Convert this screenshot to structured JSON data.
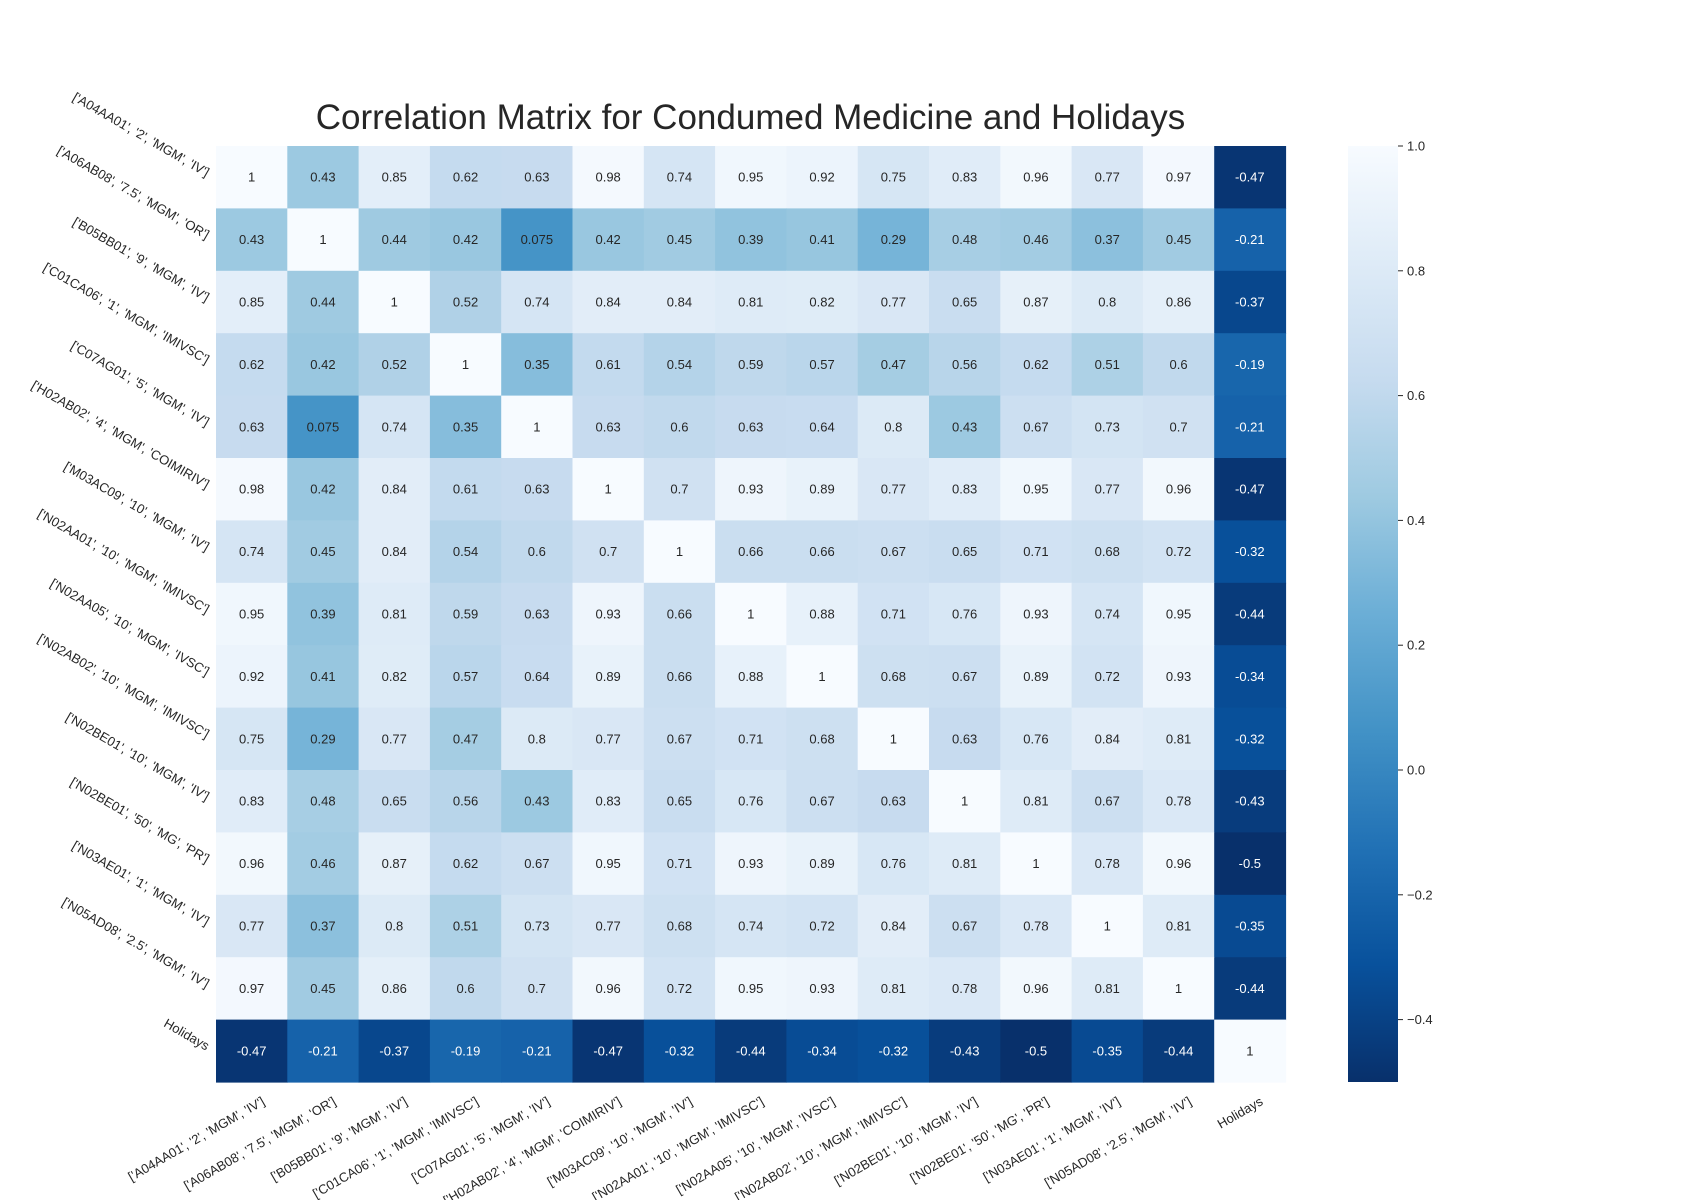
{
  "chart_data": {
    "type": "heatmap",
    "title": "Correlation Matrix for Condumed Medicine and Holidays",
    "colormap": "Blues_r",
    "vmin": -0.5,
    "vmax": 1.0,
    "labels": [
      "['A04AA01', '2', 'MGM', 'IV']",
      "['A06AB08', '7.5', 'MGM', 'OR']",
      "['B05BB01', '9', 'MGM', 'IV']",
      "['C01CA06', '1', 'MGM', 'IMIVSC']",
      "['C07AG01', '5', 'MGM', 'IV']",
      "['H02AB02', '4', 'MGM', 'COIMIRIV']",
      "['M03AC09', '10', 'MGM', 'IV']",
      "['N02AA01', '10', 'MGM', 'IMIVSC']",
      "['N02AA05', '10', 'MGM', 'IVSC']",
      "['N02AB02', '10', 'MGM', 'IMIVSC']",
      "['N02BE01', '10', 'MGM', 'IV']",
      "['N02BE01', '50', 'MG', 'PR']",
      "['N03AE01', '1', 'MGM', 'IV']",
      "['N05AD08', '2.5', 'MGM', 'IV']",
      "Holidays"
    ],
    "values": [
      [
        "1",
        "0.43",
        "0.85",
        "0.62",
        "0.63",
        "0.98",
        "0.74",
        "0.95",
        "0.92",
        "0.75",
        "0.83",
        "0.96",
        "0.77",
        "0.97",
        "-0.47"
      ],
      [
        "0.43",
        "1",
        "0.44",
        "0.42",
        "0.075",
        "0.42",
        "0.45",
        "0.39",
        "0.41",
        "0.29",
        "0.48",
        "0.46",
        "0.37",
        "0.45",
        "-0.21"
      ],
      [
        "0.85",
        "0.44",
        "1",
        "0.52",
        "0.74",
        "0.84",
        "0.84",
        "0.81",
        "0.82",
        "0.77",
        "0.65",
        "0.87",
        "0.8",
        "0.86",
        "-0.37"
      ],
      [
        "0.62",
        "0.42",
        "0.52",
        "1",
        "0.35",
        "0.61",
        "0.54",
        "0.59",
        "0.57",
        "0.47",
        "0.56",
        "0.62",
        "0.51",
        "0.6",
        "-0.19"
      ],
      [
        "0.63",
        "0.075",
        "0.74",
        "0.35",
        "1",
        "0.63",
        "0.6",
        "0.63",
        "0.64",
        "0.8",
        "0.43",
        "0.67",
        "0.73",
        "0.7",
        "-0.21"
      ],
      [
        "0.98",
        "0.42",
        "0.84",
        "0.61",
        "0.63",
        "1",
        "0.7",
        "0.93",
        "0.89",
        "0.77",
        "0.83",
        "0.95",
        "0.77",
        "0.96",
        "-0.47"
      ],
      [
        "0.74",
        "0.45",
        "0.84",
        "0.54",
        "0.6",
        "0.7",
        "1",
        "0.66",
        "0.66",
        "0.67",
        "0.65",
        "0.71",
        "0.68",
        "0.72",
        "-0.32"
      ],
      [
        "0.95",
        "0.39",
        "0.81",
        "0.59",
        "0.63",
        "0.93",
        "0.66",
        "1",
        "0.88",
        "0.71",
        "0.76",
        "0.93",
        "0.74",
        "0.95",
        "-0.44"
      ],
      [
        "0.92",
        "0.41",
        "0.82",
        "0.57",
        "0.64",
        "0.89",
        "0.66",
        "0.88",
        "1",
        "0.68",
        "0.67",
        "0.89",
        "0.72",
        "0.93",
        "-0.34"
      ],
      [
        "0.75",
        "0.29",
        "0.77",
        "0.47",
        "0.8",
        "0.77",
        "0.67",
        "0.71",
        "0.68",
        "1",
        "0.63",
        "0.76",
        "0.84",
        "0.81",
        "-0.32"
      ],
      [
        "0.83",
        "0.48",
        "0.65",
        "0.56",
        "0.43",
        "0.83",
        "0.65",
        "0.76",
        "0.67",
        "0.63",
        "1",
        "0.81",
        "0.67",
        "0.78",
        "-0.43"
      ],
      [
        "0.96",
        "0.46",
        "0.87",
        "0.62",
        "0.67",
        "0.95",
        "0.71",
        "0.93",
        "0.89",
        "0.76",
        "0.81",
        "1",
        "0.78",
        "0.96",
        "-0.5"
      ],
      [
        "0.77",
        "0.37",
        "0.8",
        "0.51",
        "0.73",
        "0.77",
        "0.68",
        "0.74",
        "0.72",
        "0.84",
        "0.67",
        "0.78",
        "1",
        "0.81",
        "-0.35"
      ],
      [
        "0.97",
        "0.45",
        "0.86",
        "0.6",
        "0.7",
        "0.96",
        "0.72",
        "0.95",
        "0.93",
        "0.81",
        "0.78",
        "0.96",
        "0.81",
        "1",
        "-0.44"
      ],
      [
        "-0.47",
        "-0.21",
        "-0.37",
        "-0.19",
        "-0.21",
        "-0.47",
        "-0.32",
        "-0.44",
        "-0.34",
        "-0.32",
        "-0.43",
        "-0.5",
        "-0.35",
        "-0.44",
        "1"
      ]
    ],
    "colorbar_ticks": [
      "1.0",
      "0.8",
      "0.6",
      "0.4",
      "0.2",
      "0.0",
      "−0.2",
      "−0.4"
    ],
    "colorbar_tick_values": [
      1.0,
      0.8,
      0.6,
      0.4,
      0.2,
      0.0,
      -0.2,
      -0.4
    ],
    "annotations": true,
    "grid": false
  }
}
